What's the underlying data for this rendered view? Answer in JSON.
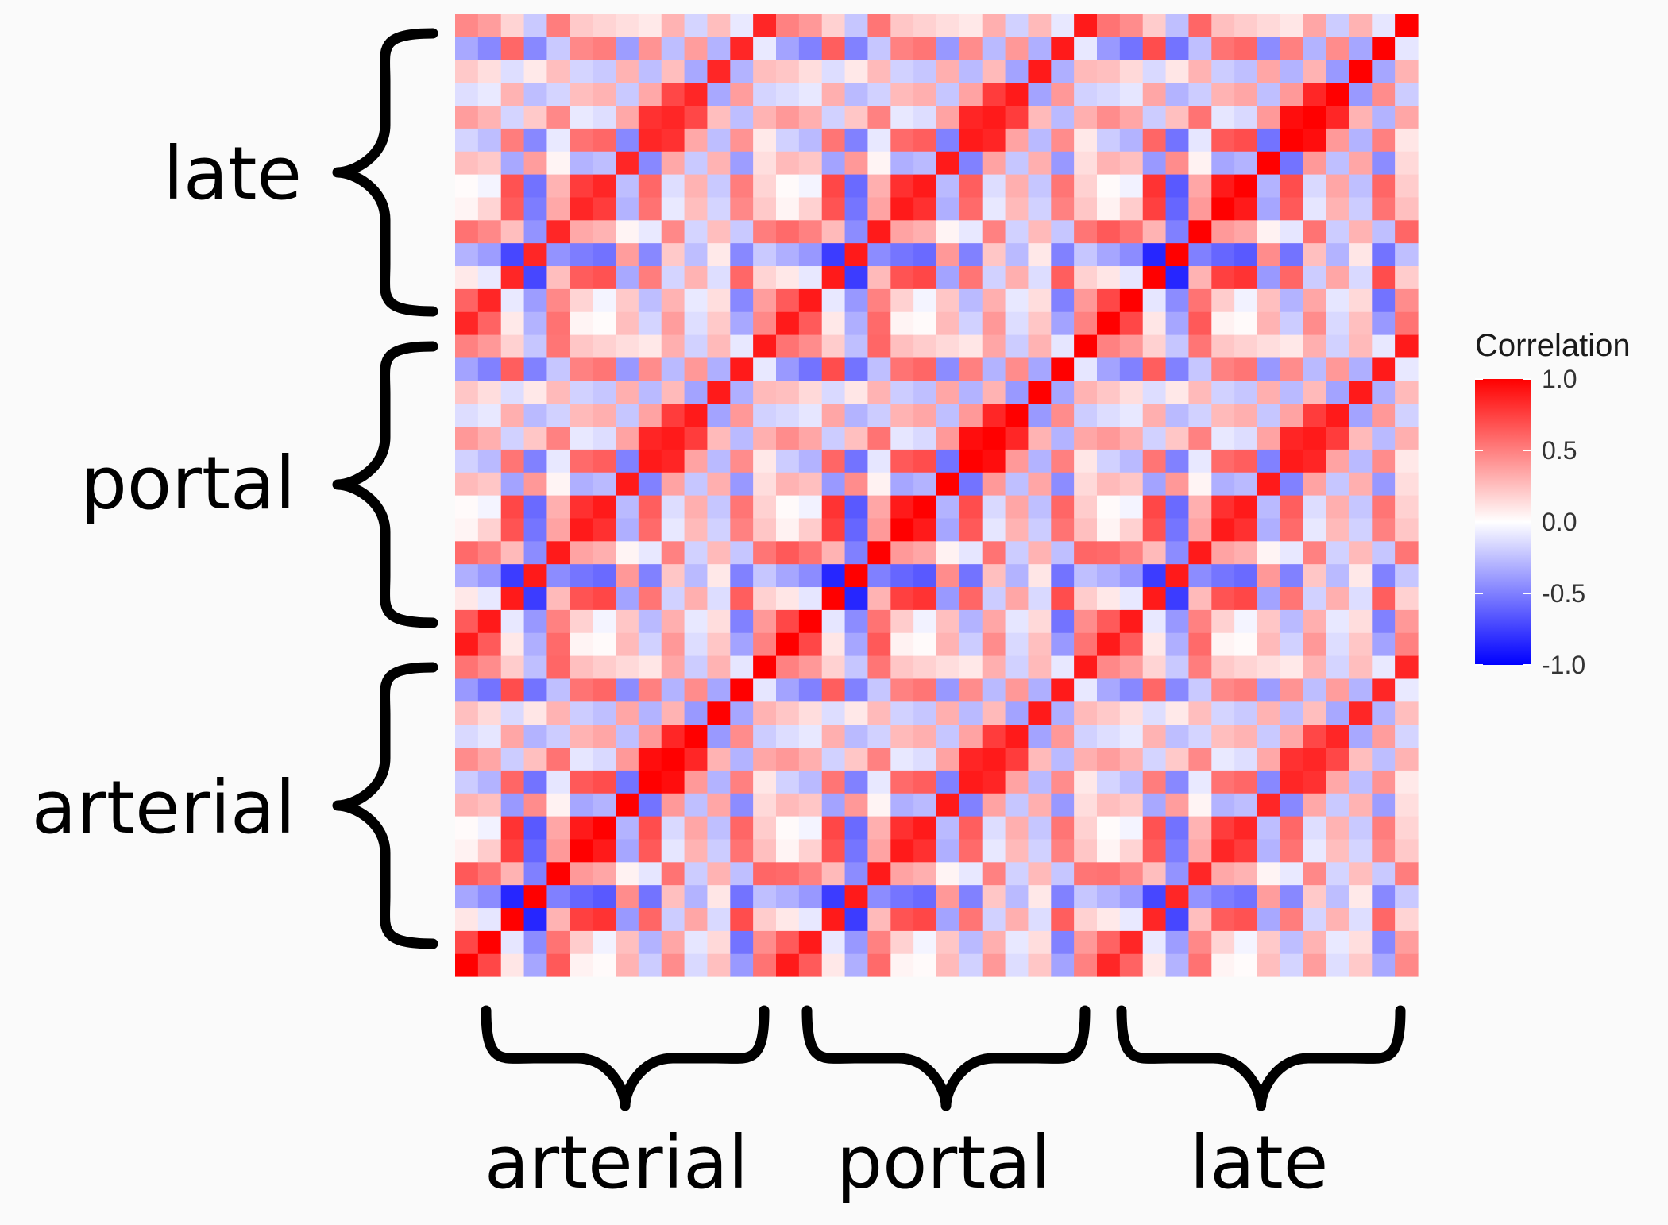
{
  "chart_data": {
    "type": "heatmap",
    "title": "",
    "xlabel": "",
    "ylabel": "",
    "x_groups": [
      "arterial",
      "portal",
      "late"
    ],
    "y_groups": [
      "arterial",
      "portal",
      "late"
    ],
    "variables_per_group": 14,
    "legend": {
      "title": "Correlation",
      "ticks": [
        "1.0",
        "0.5",
        "0.0",
        "-0.5",
        "-1.0"
      ],
      "range": [
        -1,
        1
      ],
      "placement": "right"
    },
    "colors": {
      "low": "#0000ff",
      "mid": "#ffffff",
      "high": "#ff0000"
    },
    "base_matrix": [
      [
        1.0,
        0.72,
        0.1,
        -0.35,
        0.65,
        0.05,
        0.02,
        0.3,
        -0.2,
        0.45,
        -0.15,
        0.25,
        -0.4,
        0.55
      ],
      [
        0.72,
        1.0,
        -0.1,
        -0.45,
        0.55,
        0.2,
        -0.05,
        0.25,
        -0.3,
        0.35,
        -0.1,
        0.15,
        -0.55,
        0.45
      ],
      [
        0.1,
        -0.1,
        1.0,
        -0.85,
        0.3,
        0.75,
        0.8,
        -0.4,
        0.6,
        -0.2,
        0.35,
        -0.15,
        0.7,
        0.2
      ],
      [
        -0.35,
        -0.45,
        -0.85,
        1.0,
        -0.5,
        -0.6,
        -0.65,
        0.45,
        -0.55,
        0.25,
        -0.3,
        0.1,
        -0.55,
        -0.25
      ],
      [
        0.65,
        0.55,
        0.3,
        -0.5,
        1.0,
        0.4,
        0.35,
        0.05,
        -0.1,
        0.55,
        -0.2,
        0.3,
        -0.25,
        0.6
      ],
      [
        0.05,
        0.2,
        0.75,
        -0.6,
        0.4,
        1.0,
        0.9,
        -0.35,
        0.65,
        -0.1,
        0.3,
        -0.2,
        0.55,
        0.25
      ],
      [
        0.02,
        -0.05,
        0.8,
        -0.65,
        0.35,
        0.9,
        1.0,
        -0.3,
        0.7,
        -0.15,
        0.35,
        -0.25,
        0.6,
        0.2
      ],
      [
        0.3,
        0.25,
        -0.4,
        0.45,
        0.05,
        -0.35,
        -0.3,
        1.0,
        -0.55,
        0.4,
        -0.25,
        0.35,
        -0.45,
        0.15
      ],
      [
        -0.2,
        -0.3,
        0.6,
        -0.55,
        -0.1,
        0.65,
        0.7,
        -0.55,
        1.0,
        0.95,
        0.4,
        -0.3,
        0.5,
        0.1
      ],
      [
        0.45,
        0.35,
        -0.2,
        0.25,
        0.55,
        -0.1,
        -0.15,
        0.4,
        0.95,
        1.0,
        0.85,
        0.3,
        -0.3,
        0.35
      ],
      [
        -0.15,
        -0.1,
        0.35,
        -0.3,
        -0.2,
        0.3,
        0.35,
        -0.25,
        0.4,
        0.85,
        1.0,
        -0.4,
        0.45,
        -0.2
      ],
      [
        0.25,
        0.15,
        -0.15,
        0.1,
        0.3,
        -0.2,
        -0.25,
        0.35,
        -0.3,
        0.3,
        -0.4,
        1.0,
        -0.35,
        0.3
      ],
      [
        -0.4,
        -0.55,
        0.7,
        -0.55,
        -0.25,
        0.55,
        0.6,
        -0.45,
        0.5,
        -0.3,
        0.45,
        -0.35,
        1.0,
        -0.1
      ],
      [
        0.55,
        0.45,
        0.2,
        -0.25,
        0.6,
        0.25,
        0.2,
        0.15,
        0.1,
        0.35,
        -0.2,
        0.3,
        -0.1,
        1.0
      ]
    ],
    "block_scale": [
      [
        1.0,
        0.9,
        0.85
      ],
      [
        0.9,
        1.0,
        0.9
      ],
      [
        0.85,
        0.9,
        1.0
      ]
    ]
  }
}
